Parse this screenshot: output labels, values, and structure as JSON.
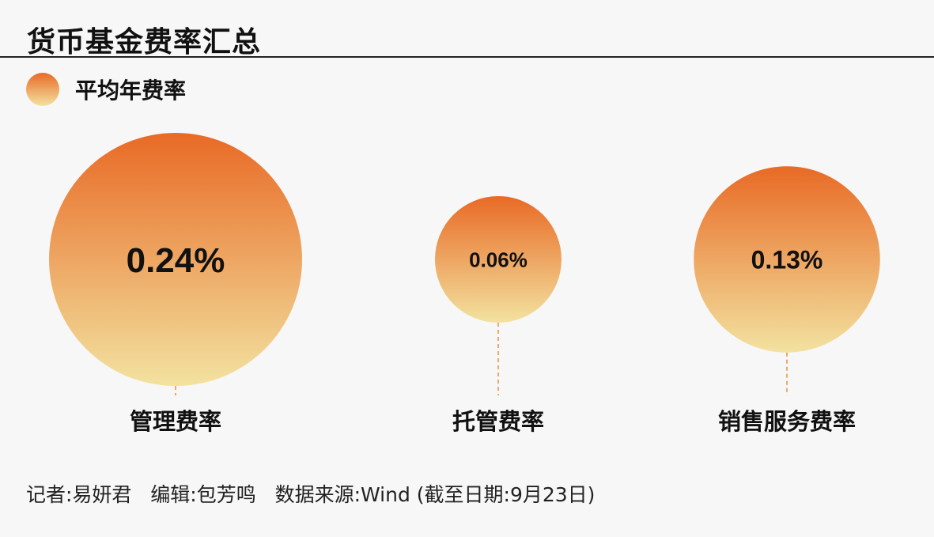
{
  "title": "货币基金费率汇总",
  "colors": {
    "gradient_top": "#e86a25",
    "gradient_bottom": "#f3e2a0",
    "dash": "#e8913a"
  },
  "chart_data": {
    "type": "bubble",
    "legend": {
      "label": "平均年费率",
      "placement": "top-left"
    },
    "categories": [
      "管理费率",
      "托管费率",
      "销售服务费率"
    ],
    "values": [
      0.24,
      0.06,
      0.13
    ],
    "data_labels": [
      "0.24%",
      "0.06%",
      "0.13%"
    ],
    "unit": "%"
  },
  "footer": {
    "reporter": "记者:易妍君",
    "editor": "编辑:包芳鸣",
    "source": "数据来源:Wind (截至日期:9月23日)"
  }
}
